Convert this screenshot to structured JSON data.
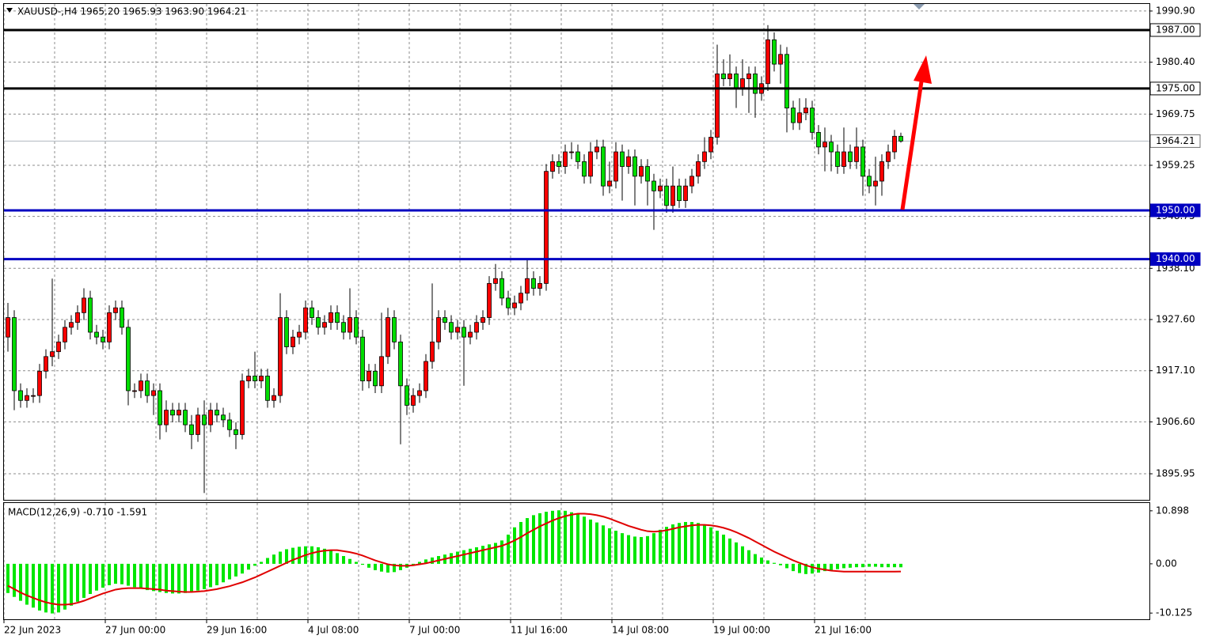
{
  "chart_data": [
    {
      "type": "candlestick",
      "subtitle": "XAUUSD-,H4  1965.20 1965.93 1963.90 1964.21",
      "categories": [
        "22 Jun 2023",
        null,
        null,
        null,
        null,
        null,
        null,
        null,
        null,
        null,
        null,
        null,
        null,
        null,
        null,
        null,
        "27 Jun 00:00",
        null,
        null,
        null,
        null,
        null,
        null,
        null,
        null,
        null,
        null,
        null,
        null,
        null,
        null,
        null,
        "29 Jun 16:00",
        null,
        null,
        null,
        null,
        null,
        null,
        null,
        null,
        null,
        null,
        null,
        null,
        null,
        null,
        null,
        "4 Jul 08:00",
        null,
        null,
        null,
        null,
        null,
        null,
        null,
        null,
        null,
        null,
        null,
        null,
        null,
        null,
        null,
        "7 Jul 00:00",
        null,
        null,
        null,
        null,
        null,
        null,
        null,
        null,
        null,
        null,
        null,
        null,
        null,
        null,
        null,
        "11 Jul 16:00",
        null,
        null,
        null,
        null,
        null,
        null,
        null,
        null,
        null,
        null,
        null,
        null,
        null,
        null,
        null,
        "14 Jul 08:00",
        null,
        null,
        null,
        null,
        null,
        null,
        null,
        null,
        null,
        null,
        null,
        null,
        null,
        null,
        null,
        "19 Jul 00:00",
        null,
        null,
        null,
        null,
        null,
        null,
        null,
        null,
        null,
        null,
        null,
        null,
        null,
        null,
        null,
        "21 Jul 16:00",
        null,
        null,
        null,
        null,
        null,
        null,
        null,
        null,
        null,
        null,
        null,
        null,
        null
      ],
      "open": [
        1924,
        1928,
        1913,
        1911,
        1912,
        1912,
        1917,
        1920,
        1921,
        1923,
        1926,
        1927,
        1929,
        1932,
        1925,
        1924,
        1923,
        1929,
        1930,
        1926,
        1913,
        1913,
        1915,
        1912,
        1913,
        1906,
        1909,
        1908,
        1909,
        1906,
        1904,
        1908,
        1906,
        1909,
        1908,
        1907,
        1905,
        1904,
        1915,
        1916,
        1915,
        1916,
        1911,
        1912,
        1928,
        1922,
        1924,
        1925,
        1930,
        1928,
        1926,
        1927,
        1929,
        1927,
        1925,
        1928,
        1924,
        1915,
        1917,
        1914,
        1920,
        1928,
        1923,
        1914,
        1910,
        1912,
        1913,
        1919,
        1923,
        1928,
        1927,
        1925,
        1926,
        1924,
        1925,
        1927,
        1928,
        1935,
        1936,
        1932,
        1930,
        1931,
        1933,
        1936,
        1934,
        1935,
        1958,
        1960,
        1959,
        1962,
        1962,
        1960,
        1957,
        1962,
        1963,
        1955,
        1956,
        1962,
        1959,
        1961,
        1957,
        1959,
        1956,
        1954,
        1955,
        1951,
        1955,
        1952,
        1955,
        1957,
        1960,
        1962,
        1965,
        1978,
        1977,
        1978,
        1975,
        1977,
        1978,
        1974,
        1976,
        1985,
        1980,
        1982,
        1971,
        1968,
        1970,
        1971,
        1966,
        1963,
        1964,
        1962,
        1959,
        1962,
        1960,
        1963,
        1957,
        1955,
        1956,
        1960,
        1962,
        1965.2
      ],
      "high": [
        1931,
        1929.5,
        1914.5,
        1913.5,
        1913.5,
        1918.5,
        1921.5,
        1936,
        1924.5,
        1927.5,
        1928.5,
        1930.5,
        1934,
        1933.5,
        1926.5,
        1925.5,
        1930.5,
        1931.5,
        1931.5,
        1927.5,
        1914.5,
        1916.5,
        1916.5,
        1914.5,
        1914.5,
        1911,
        1910.5,
        1910.5,
        1910.5,
        1908,
        1909.5,
        1911,
        1910.5,
        1910.5,
        1909.5,
        1908.5,
        1906.5,
        1916.5,
        1917.5,
        1921,
        1917.5,
        1917.5,
        1913.5,
        1933,
        1929.5,
        1925.5,
        1926.5,
        1931.5,
        1931.5,
        1929.5,
        1928.5,
        1930.5,
        1930.5,
        1928.5,
        1934,
        1929.5,
        1925.5,
        1918.5,
        1918.5,
        1929,
        1930,
        1929.5,
        1924.5,
        1915.5,
        1913.5,
        1914.5,
        1920.5,
        1935,
        1929.5,
        1929.5,
        1928.5,
        1927.5,
        1927.5,
        1926.5,
        1928.5,
        1929.5,
        1936.5,
        1939,
        1937.5,
        1933.5,
        1932.5,
        1934.5,
        1940,
        1937.5,
        1936.5,
        1959.5,
        1961.5,
        1961.5,
        1963.5,
        1964,
        1963.5,
        1961.5,
        1964,
        1964.5,
        1964.5,
        1960,
        1964,
        1963.5,
        1962.5,
        1962.5,
        1960.5,
        1960.5,
        1957.5,
        1956.5,
        1956.5,
        1959,
        1956.5,
        1956.5,
        1958.5,
        1961.5,
        1965,
        1966.5,
        1984,
        1981,
        1982,
        1979.5,
        1981,
        1979.5,
        1979.5,
        1977.5,
        1988,
        1986.5,
        1984,
        1983.5,
        1972.5,
        1973,
        1973,
        1972.5,
        1967.5,
        1967,
        1965.5,
        1963.5,
        1967,
        1963.5,
        1967,
        1964.5,
        1958.5,
        1961,
        1961.5,
        1963.5,
        1966.5,
        1965.93
      ],
      "low": [
        1921,
        1909,
        1909.5,
        1909.5,
        1910.5,
        1910.5,
        1915.5,
        1918,
        1919.5,
        1921.5,
        1924.5,
        1925.5,
        1927.5,
        1923.5,
        1922.5,
        1921.5,
        1921.5,
        1927.5,
        1924.5,
        1910,
        1911.5,
        1911.5,
        1910.5,
        1908,
        1903,
        1904.5,
        1906.5,
        1906.5,
        1904.5,
        1901,
        1902.5,
        1892,
        1904.5,
        1906.5,
        1905.5,
        1903.5,
        1901,
        1903,
        1913.5,
        1913.5,
        1913.5,
        1909.5,
        1909.5,
        1910.5,
        1920.5,
        1920.5,
        1922.5,
        1923.5,
        1926.5,
        1924.5,
        1924.5,
        1925.5,
        1925.5,
        1923.5,
        1923.5,
        1922.5,
        1913,
        1913.5,
        1912.5,
        1912.5,
        1918.5,
        1921.5,
        1902,
        1908,
        1908.5,
        1910.5,
        1911.5,
        1917.5,
        1921.5,
        1925.5,
        1923.5,
        1923.5,
        1914,
        1922.5,
        1923.5,
        1925.5,
        1926.5,
        1933.5,
        1930.5,
        1928.5,
        1928.5,
        1929.5,
        1931.5,
        1932.5,
        1932.5,
        1933.5,
        1956.5,
        1957.5,
        1957.5,
        1960.5,
        1958.5,
        1955.5,
        1955.5,
        1960.5,
        1953,
        1953.5,
        1954.5,
        1952,
        1957.5,
        1951,
        1955.5,
        1951,
        1946,
        1952.5,
        1949.5,
        1949.5,
        1950.5,
        1950.5,
        1953.5,
        1955.5,
        1958.5,
        1960.5,
        1963.5,
        1975.5,
        1975.5,
        1971,
        1973.5,
        1970,
        1969,
        1972.5,
        1974.5,
        1978.5,
        1976,
        1966,
        1966.5,
        1966.5,
        1968.5,
        1964.5,
        1961.5,
        1958,
        1958,
        1957.5,
        1957.5,
        1958.5,
        1958.5,
        1953,
        1953.5,
        1951,
        1953,
        1958.5,
        1960.5,
        1963.9
      ],
      "close": [
        1928,
        1913,
        1911,
        1912,
        1912,
        1917,
        1920,
        1921,
        1923,
        1926,
        1927,
        1929,
        1932,
        1925,
        1924,
        1923,
        1929,
        1930,
        1926,
        1913,
        1913,
        1915,
        1912,
        1913,
        1906,
        1909,
        1908,
        1909,
        1906,
        1904,
        1908,
        1906,
        1909,
        1908,
        1907,
        1905,
        1904,
        1915,
        1916,
        1915,
        1916,
        1911,
        1912,
        1928,
        1922,
        1924,
        1925,
        1930,
        1928,
        1926,
        1927,
        1929,
        1927,
        1925,
        1928,
        1924,
        1915,
        1917,
        1914,
        1920,
        1928,
        1923,
        1914,
        1910,
        1912,
        1913,
        1919,
        1923,
        1928,
        1927,
        1925,
        1926,
        1924,
        1925,
        1927,
        1928,
        1935,
        1936,
        1932,
        1930,
        1931,
        1933,
        1936,
        1934,
        1935,
        1958,
        1960,
        1959,
        1962,
        1962,
        1960,
        1957,
        1962,
        1963,
        1955,
        1956,
        1962,
        1959,
        1961,
        1957,
        1959,
        1956,
        1954,
        1955,
        1951,
        1955,
        1952,
        1955,
        1957,
        1960,
        1962,
        1965,
        1978,
        1977,
        1978,
        1975,
        1977,
        1978,
        1974,
        1976,
        1985,
        1980,
        1982,
        1971,
        1968,
        1970,
        1971,
        1966,
        1963,
        1964,
        1962,
        1959,
        1962,
        1960,
        1963,
        1957,
        1955,
        1956,
        1960,
        1962,
        1965.2,
        1964.21
      ],
      "up_color": "#ff0000",
      "down_color": "#00dd00",
      "ylim": [
        1890.6,
        1992.35
      ],
      "yticks": [
        {
          "value": 1990.9,
          "label": "1990.90"
        },
        {
          "value": 1980.4,
          "label": "1980.40"
        },
        {
          "value": 1969.75,
          "label": "1969.75"
        },
        {
          "value": 1959.25,
          "label": "1959.25"
        },
        {
          "value": 1948.75,
          "label": "1948.75"
        },
        {
          "value": 1938.1,
          "label": "1938.10"
        },
        {
          "value": 1927.6,
          "label": "1927.60"
        },
        {
          "value": 1917.1,
          "label": "1917.10"
        },
        {
          "value": 1906.6,
          "label": "1906.60"
        },
        {
          "value": 1895.95,
          "label": "1895.95"
        }
      ],
      "grid": true,
      "levels": [
        {
          "value": 1987,
          "label": "1987.00",
          "color": "#000000"
        },
        {
          "value": 1975,
          "label": "1975.00",
          "color": "#000000"
        },
        {
          "value": 1950,
          "label": "1950.00",
          "color": "#0000c0"
        },
        {
          "value": 1940,
          "label": "1940.00",
          "color": "#0000c0"
        }
      ],
      "last_price": {
        "value": 1964.21,
        "label": "1964.21"
      }
    },
    {
      "type": "macd",
      "title": "MACD(12,26,9) -0.710 -1.591",
      "histogram": [
        -6.0,
        -6.8,
        -7.6,
        -8.4,
        -9.0,
        -9.6,
        -10.0,
        -10.2,
        -10.0,
        -9.4,
        -8.6,
        -7.8,
        -7.0,
        -6.2,
        -5.5,
        -4.9,
        -4.4,
        -4.1,
        -4.2,
        -4.5,
        -4.8,
        -5.1,
        -5.4,
        -5.6,
        -5.8,
        -6.0,
        -6.1,
        -6.1,
        -6.0,
        -5.8,
        -5.5,
        -5.2,
        -4.8,
        -4.4,
        -3.8,
        -3.2,
        -2.6,
        -2.0,
        -1.2,
        -0.4,
        0.4,
        1.2,
        1.9,
        2.5,
        3.0,
        3.3,
        3.5,
        3.6,
        3.6,
        3.4,
        3.1,
        2.7,
        2.2,
        1.6,
        1.0,
        0.4,
        -0.2,
        -0.8,
        -1.3,
        -1.6,
        -1.8,
        -1.7,
        -1.3,
        -0.8,
        -0.2,
        0.4,
        0.9,
        1.3,
        1.6,
        1.9,
        2.2,
        2.5,
        2.8,
        3.1,
        3.4,
        3.7,
        4.0,
        4.3,
        4.8,
        6.0,
        7.5,
        8.6,
        9.4,
        10.0,
        10.4,
        10.7,
        10.9,
        11.0,
        10.9,
        10.6,
        10.2,
        9.7,
        9.1,
        8.5,
        7.9,
        7.3,
        6.8,
        6.3,
        5.9,
        5.6,
        5.5,
        5.7,
        6.3,
        7.0,
        7.6,
        8.1,
        8.4,
        8.6,
        8.6,
        8.4,
        8.1,
        7.5,
        6.8,
        6.0,
        5.2,
        4.4,
        3.6,
        2.8,
        2.0,
        1.3,
        0.7,
        0.2,
        -0.3,
        -0.9,
        -1.5,
        -1.9,
        -2.1,
        -2.0,
        -1.8,
        -1.5,
        -1.3,
        -1.1,
        -0.9,
        -0.8,
        -0.7,
        -0.7,
        -0.6,
        -0.6,
        -0.7,
        -0.7,
        -0.7,
        -0.71
      ],
      "signal": [
        -4.5,
        -5.2,
        -5.9,
        -6.5,
        -7.0,
        -7.5,
        -7.9,
        -8.2,
        -8.4,
        -8.4,
        -8.3,
        -8.0,
        -7.6,
        -7.1,
        -6.6,
        -6.1,
        -5.7,
        -5.3,
        -5.1,
        -5.0,
        -5.0,
        -5.0,
        -5.1,
        -5.2,
        -5.3,
        -5.5,
        -5.6,
        -5.7,
        -5.8,
        -5.8,
        -5.7,
        -5.6,
        -5.4,
        -5.2,
        -4.9,
        -4.6,
        -4.2,
        -3.8,
        -3.3,
        -2.8,
        -2.2,
        -1.6,
        -1.0,
        -0.4,
        0.2,
        0.8,
        1.3,
        1.8,
        2.2,
        2.5,
        2.7,
        2.8,
        2.8,
        2.6,
        2.4,
        2.1,
        1.7,
        1.2,
        0.7,
        0.3,
        -0.1,
        -0.3,
        -0.4,
        -0.4,
        -0.3,
        -0.1,
        0.1,
        0.4,
        0.7,
        1.0,
        1.3,
        1.6,
        1.9,
        2.2,
        2.5,
        2.8,
        3.1,
        3.4,
        3.7,
        4.2,
        4.8,
        5.5,
        6.3,
        7.0,
        7.7,
        8.3,
        8.9,
        9.4,
        9.8,
        10.1,
        10.3,
        10.3,
        10.2,
        10.0,
        9.7,
        9.3,
        8.8,
        8.3,
        7.8,
        7.4,
        7.0,
        6.7,
        6.6,
        6.7,
        6.9,
        7.2,
        7.5,
        7.7,
        7.9,
        8.0,
        8.0,
        7.9,
        7.7,
        7.4,
        7.0,
        6.5,
        5.9,
        5.3,
        4.6,
        3.9,
        3.2,
        2.5,
        1.9,
        1.3,
        0.7,
        0.2,
        -0.3,
        -0.7,
        -1.0,
        -1.2,
        -1.4,
        -1.5,
        -1.6,
        -1.6,
        -1.6,
        -1.6,
        -1.6,
        -1.6,
        -1.6,
        -1.6,
        -1.6,
        -1.591
      ],
      "histogram_color": "#00e600",
      "signal_color": "#e00000",
      "ylim": [
        -11.4,
        12.5
      ],
      "yticks": [
        {
          "value": 10.898,
          "label": "10.898"
        },
        {
          "value": 0,
          "label": "0.00"
        },
        {
          "value": -10.125,
          "label": "-10.125"
        }
      ]
    }
  ]
}
